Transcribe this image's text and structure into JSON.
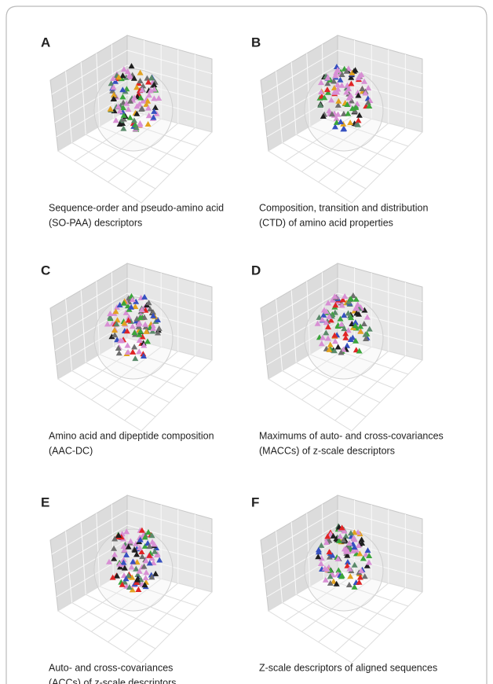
{
  "panels": [
    {
      "label": "A",
      "caption": [
        "Sequence-order and pseudo-amino acid",
        "(SO-PAA) descriptors"
      ]
    },
    {
      "label": "B",
      "caption": [
        "Composition, transition and distribution",
        "(CTD) of amino acid properties"
      ]
    },
    {
      "label": "C",
      "caption": [
        "Amino acid and dipeptide composition",
        "(AAC-DC)"
      ]
    },
    {
      "label": "D",
      "caption": [
        "Maximums of auto- and cross-covariances",
        "(MACCs) of z-scale descriptors"
      ]
    },
    {
      "label": "E",
      "caption": [
        "Auto- and cross-covariances",
        "(ACCs) of z-scale descriptors"
      ]
    },
    {
      "label": "F",
      "caption": [
        "Z-scale descriptors of aligned sequences"
      ]
    }
  ]
}
